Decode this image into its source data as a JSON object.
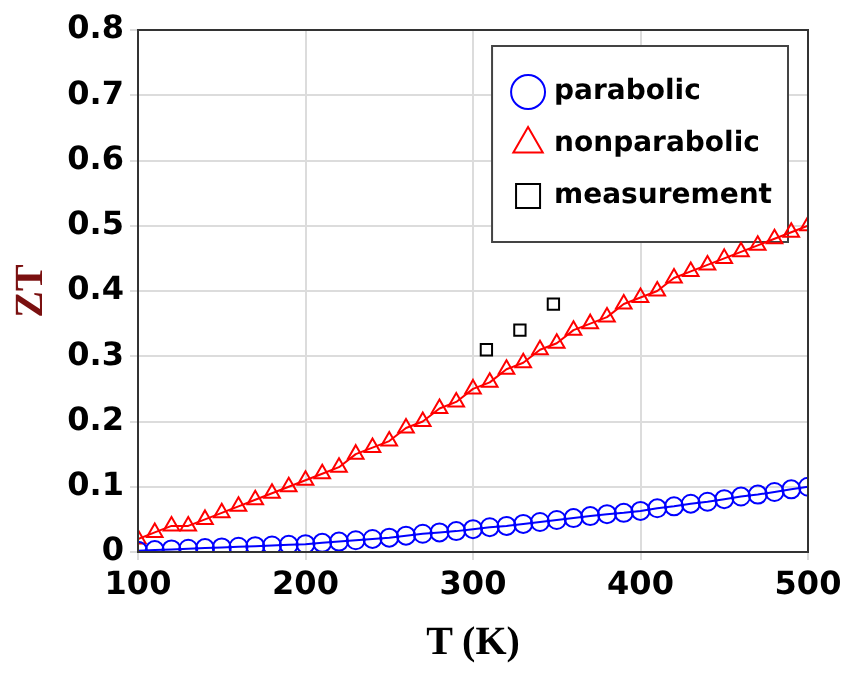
{
  "chart_data": {
    "type": "line",
    "xlabel": "T (K)",
    "ylabel": "ZT",
    "xlim": [
      100,
      500
    ],
    "xticks": [
      100,
      200,
      300,
      400,
      500
    ],
    "ylim": [
      0,
      0.8
    ],
    "yticks": [
      0,
      0.1,
      0.2,
      0.3,
      0.4,
      0.5,
      0.6,
      0.7,
      0.8
    ],
    "grid": true,
    "legend": "top right",
    "x": [
      100,
      110,
      120,
      130,
      140,
      150,
      160,
      170,
      180,
      190,
      200,
      210,
      220,
      230,
      240,
      250,
      260,
      270,
      280,
      290,
      300,
      310,
      320,
      330,
      340,
      350,
      360,
      370,
      380,
      390,
      400,
      410,
      420,
      430,
      440,
      450,
      460,
      470,
      480,
      490,
      500
    ],
    "series": [
      {
        "name": "parabolic",
        "type": "line",
        "marker": "circle",
        "color": "#0000ff",
        "values": [
          0.002,
          0.003,
          0.004,
          0.005,
          0.006,
          0.007,
          0.008,
          0.009,
          0.01,
          0.011,
          0.012,
          0.014,
          0.016,
          0.018,
          0.02,
          0.022,
          0.025,
          0.028,
          0.03,
          0.032,
          0.035,
          0.038,
          0.04,
          0.043,
          0.046,
          0.049,
          0.052,
          0.055,
          0.058,
          0.06,
          0.063,
          0.067,
          0.07,
          0.074,
          0.077,
          0.081,
          0.085,
          0.088,
          0.092,
          0.096,
          0.1
        ]
      },
      {
        "name": "nonparabolic",
        "type": "line",
        "marker": "triangle",
        "color": "#ff0000",
        "values": [
          0.02,
          0.03,
          0.04,
          0.04,
          0.05,
          0.06,
          0.07,
          0.08,
          0.09,
          0.1,
          0.11,
          0.12,
          0.13,
          0.15,
          0.16,
          0.17,
          0.19,
          0.2,
          0.22,
          0.23,
          0.25,
          0.26,
          0.28,
          0.29,
          0.31,
          0.32,
          0.34,
          0.35,
          0.36,
          0.38,
          0.39,
          0.4,
          0.42,
          0.43,
          0.44,
          0.45,
          0.46,
          0.47,
          0.48,
          0.49,
          0.5
        ]
      },
      {
        "name": "measurement",
        "type": "scatter",
        "marker": "square",
        "color": "#000000",
        "x": [
          308,
          328,
          348
        ],
        "values": [
          0.31,
          0.34,
          0.38
        ]
      }
    ]
  }
}
